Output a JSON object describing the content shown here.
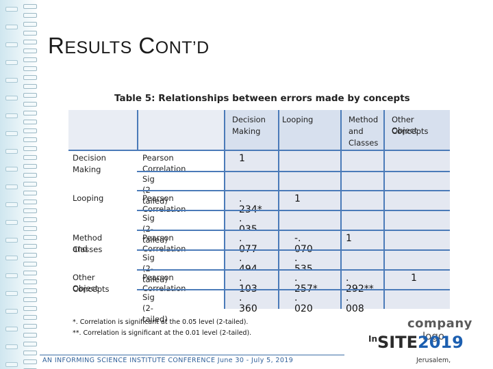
{
  "slide": {
    "title_first_big": "R",
    "title_first_rest": "ESULTS",
    "title_second_big": "C",
    "title_second_rest": "ONT’D",
    "caption": "Table 5: Relationships between errors made by concepts"
  },
  "table": {
    "columns": [
      "Decision Making",
      "Looping",
      "Method and Classes",
      "Other Object Concepts"
    ],
    "col_header_lines": [
      [
        "Decision",
        "Making"
      ],
      [
        "Looping"
      ],
      [
        "Method",
        "and",
        "Classes"
      ],
      [
        "Other Object",
        "Concepts"
      ]
    ],
    "row_groups": [
      {
        "label_lines": [
          "Decision",
          "Making"
        ],
        "pearson": [
          "1",
          "",
          "",
          ""
        ],
        "sig": [
          "",
          "",
          "",
          ""
        ]
      },
      {
        "label_lines": [
          "Looping"
        ],
        "pearson": [
          ". 234*",
          "1",
          "",
          ""
        ],
        "sig": [
          ". 035",
          "",
          "",
          ""
        ]
      },
      {
        "label_lines": [
          "Method and",
          "Classes"
        ],
        "pearson": [
          ". 077",
          "-. 070",
          "1",
          ""
        ],
        "sig": [
          ". 494",
          ". 535",
          "",
          ""
        ]
      },
      {
        "label_lines": [
          "Other Object",
          "Concepts"
        ],
        "pearson": [
          ". 103",
          ". 257*",
          ". 292**",
          "1"
        ],
        "sig": [
          ". 360",
          ". 020",
          ". 008",
          ""
        ]
      }
    ],
    "pearson_label": "Pearson Correlation",
    "sig_label": "Sig (2-tailed)"
  },
  "notes": {
    "line1": "*. Correlation is significant at the 0.05 level (2-tailed).",
    "line2": "**. Correlation is significant at the 0.01 level (2-tailed)."
  },
  "footer": {
    "conference": "AN INFORMING SCIENCE INSTITUTE CONFERENCE June 30 - July 5, 2019",
    "city": "Jerusalem,"
  },
  "logo": {
    "company": "company",
    "logo_word": "logo",
    "insite_sup": "In",
    "insite_main": "SITE",
    "insite_year": "2019"
  },
  "colors": {
    "grid_line": "#4a7ab8",
    "cell_fill": "#e4e8f1",
    "footer_text": "#2e5f99",
    "year_accent": "#1c5fb0"
  }
}
